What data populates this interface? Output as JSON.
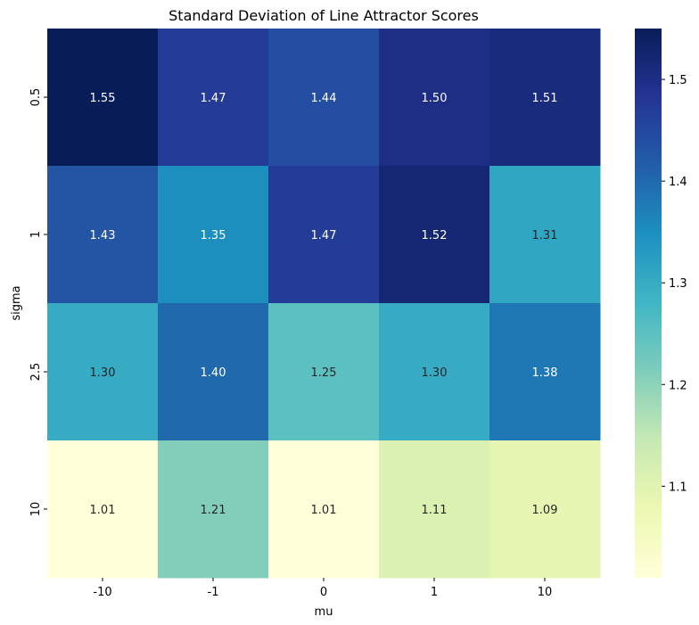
{
  "chart_data": {
    "type": "heatmap",
    "title": "Standard Deviation of Line Attractor Scores",
    "xlabel": "mu",
    "ylabel": "sigma",
    "x_categories": [
      "-10",
      "-1",
      "0",
      "1",
      "10"
    ],
    "y_categories": [
      "0.5",
      "1",
      "2.5",
      "10"
    ],
    "values": [
      [
        1.55,
        1.47,
        1.44,
        1.5,
        1.51
      ],
      [
        1.43,
        1.35,
        1.47,
        1.52,
        1.31
      ],
      [
        1.3,
        1.4,
        1.25,
        1.3,
        1.38
      ],
      [
        1.01,
        1.21,
        1.01,
        1.11,
        1.09
      ]
    ],
    "value_labels": [
      [
        "1.55",
        "1.47",
        "1.44",
        "1.50",
        "1.51"
      ],
      [
        "1.43",
        "1.35",
        "1.47",
        "1.52",
        "1.31"
      ],
      [
        "1.30",
        "1.40",
        "1.25",
        "1.30",
        "1.38"
      ],
      [
        "1.01",
        "1.21",
        "1.01",
        "1.11",
        "1.09"
      ]
    ],
    "colormap": "YlGnBu",
    "colorbar": {
      "vmin": 1.01,
      "vmax": 1.55,
      "ticks": [
        1.1,
        1.2,
        1.3,
        1.4,
        1.5
      ],
      "tick_labels": [
        "1.1",
        "1.2",
        "1.3",
        "1.4",
        "1.5"
      ]
    },
    "grid": false
  }
}
